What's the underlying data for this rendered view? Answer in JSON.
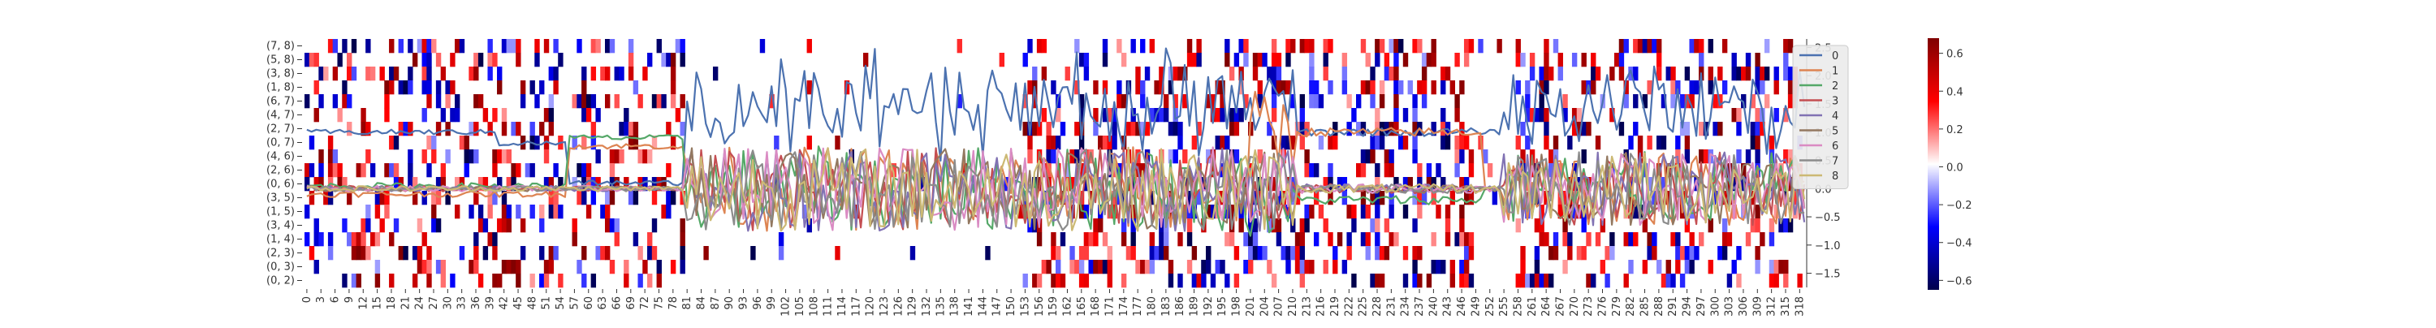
{
  "chart_data": [
    {
      "type": "heatmap",
      "row_labels": [
        "(7, 8)",
        "(5, 8)",
        "(3, 8)",
        "(1, 8)",
        "(6, 7)",
        "(4, 7)",
        "(2, 7)",
        "(0, 7)",
        "(4, 6)",
        "(2, 6)",
        "(0, 6)",
        "(3, 5)",
        "(1, 5)",
        "(3, 4)",
        "(1, 4)",
        "(2, 3)",
        "(0, 3)",
        "(0, 2)"
      ],
      "x_tick_labels": [
        "0",
        "3",
        "6",
        "9",
        "12",
        "15",
        "18",
        "21",
        "24",
        "27",
        "30",
        "33",
        "36",
        "39",
        "42",
        "45",
        "48",
        "51",
        "54",
        "57",
        "60",
        "63",
        "66",
        "69",
        "72",
        "75",
        "78",
        "81",
        "84",
        "87",
        "90",
        "93",
        "96",
        "99",
        "102",
        "105",
        "108",
        "111",
        "114",
        "117",
        "120",
        "123",
        "126",
        "129",
        "132",
        "135",
        "138",
        "141",
        "144",
        "147",
        "150",
        "153",
        "156",
        "159",
        "162",
        "165",
        "168",
        "171",
        "174",
        "177",
        "180",
        "183",
        "186",
        "189",
        "192",
        "195",
        "198",
        "201",
        "204",
        "207",
        "210",
        "213",
        "216",
        "219",
        "222",
        "225",
        "228",
        "231",
        "234",
        "237",
        "240",
        "243",
        "246",
        "249",
        "252",
        "255",
        "258",
        "261",
        "264",
        "267",
        "270",
        "273",
        "276",
        "279",
        "282",
        "285",
        "288",
        "291",
        "294",
        "297",
        "300",
        "303",
        "306",
        "309",
        "312",
        "315",
        "318"
      ],
      "n_columns": 320,
      "colormap": "seismic (blue-white-red)",
      "colorbar": {
        "min": -0.65,
        "max": 0.68,
        "ticks": [
          -0.6,
          -0.4,
          -0.2,
          0.0,
          0.2,
          0.4,
          0.6
        ]
      },
      "active_column_ranges": [
        [
          0,
          54
        ],
        [
          57,
          80
        ],
        [
          153,
          159
        ],
        [
          160,
          182
        ],
        [
          183,
          218
        ],
        [
          219,
          248
        ],
        [
          258,
          318
        ]
      ],
      "sparse_column_ranges": [
        [
          81,
          152
        ],
        [
          249,
          257
        ]
      ],
      "estimated": true
    },
    {
      "type": "line",
      "x_range": [
        0,
        319
      ],
      "ylim": [
        -1.75,
        2.65
      ],
      "yticks": [
        -1.5,
        -1.0,
        -0.5,
        0.0,
        0.5,
        1.0,
        1.5,
        2.0,
        2.5
      ],
      "legend_position": "top-right",
      "series": [
        {
          "name": "0",
          "color": "#4c72b0",
          "regime_levels": [
            [
              0,
              40,
              1.0
            ],
            [
              41,
              55,
              0.8
            ],
            [
              56,
              80,
              0.1
            ],
            [
              81,
              250,
              1.0
            ],
            [
              251,
              319,
              1.0
            ]
          ]
        },
        {
          "name": "1",
          "color": "#dd8452",
          "regime_levels": [
            [
              0,
              55,
              -0.1
            ],
            [
              56,
              80,
              0.75
            ],
            [
              81,
              200,
              0.0
            ],
            [
              201,
              250,
              1.0
            ],
            [
              251,
              319,
              0.0
            ]
          ]
        },
        {
          "name": "2",
          "color": "#55a868",
          "regime_levels": [
            [
              0,
              55,
              0.05
            ],
            [
              56,
              80,
              0.9
            ],
            [
              81,
              200,
              0.0
            ],
            [
              201,
              250,
              -0.2
            ],
            [
              251,
              319,
              0.0
            ]
          ]
        },
        {
          "name": "3",
          "color": "#c44e52",
          "regime_levels": [
            [
              0,
              319,
              0.0
            ]
          ]
        },
        {
          "name": "4",
          "color": "#8172b3",
          "regime_levels": [
            [
              0,
              319,
              0.0
            ]
          ]
        },
        {
          "name": "5",
          "color": "#937860",
          "regime_levels": [
            [
              0,
              319,
              0.0
            ]
          ]
        },
        {
          "name": "6",
          "color": "#da8bc3",
          "regime_levels": [
            [
              0,
              319,
              0.0
            ]
          ]
        },
        {
          "name": "7",
          "color": "#8c8c8c",
          "regime_levels": [
            [
              0,
              319,
              0.0
            ]
          ]
        },
        {
          "name": "8",
          "color": "#ccb974",
          "regime_levels": [
            [
              0,
              319,
              0.0
            ]
          ]
        }
      ],
      "estimated": true
    }
  ]
}
